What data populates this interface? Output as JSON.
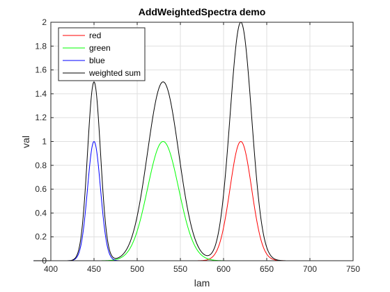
{
  "chart_data": {
    "type": "line",
    "title": "AddWeightedSpectra demo",
    "xlabel": "lam",
    "ylabel": "val",
    "xlim": [
      400,
      750
    ],
    "ylim": [
      0,
      2
    ],
    "xticks": [
      400,
      450,
      500,
      550,
      600,
      650,
      700,
      750
    ],
    "xtick_labels": [
      "400",
      "450",
      "500",
      "550",
      "600",
      "650",
      "700",
      "750"
    ],
    "yticks": [
      0,
      0.2,
      0.4,
      0.6,
      0.8,
      1,
      1.2,
      1.4,
      1.6,
      1.8,
      2
    ],
    "ytick_labels": [
      "0",
      "0.2",
      "0.4",
      "0.6",
      "0.8",
      "1",
      "1.2",
      "1.4",
      "1.6",
      "1.8",
      "2"
    ],
    "grid": true,
    "legend_position": "top-left",
    "x_domain": [
      380,
      730
    ],
    "series": [
      {
        "name": "red",
        "color": "#ff0000",
        "peak_x": 620,
        "peak_y": 1.0,
        "sigma": 12.5,
        "weight_in_sum": 2.0
      },
      {
        "name": "green",
        "color": "#00ff00",
        "peak_x": 530,
        "peak_y": 1.0,
        "sigma": 18.0,
        "weight_in_sum": 1.5
      },
      {
        "name": "blue",
        "color": "#0000ff",
        "peak_x": 450,
        "peak_y": 1.0,
        "sigma": 7.5,
        "weight_in_sum": 1.5
      },
      {
        "name": "weighted sum",
        "color": "#000000",
        "peak_points": [
          [
            450,
            1.5
          ],
          [
            530,
            1.5
          ],
          [
            620,
            2.0
          ]
        ]
      }
    ]
  }
}
